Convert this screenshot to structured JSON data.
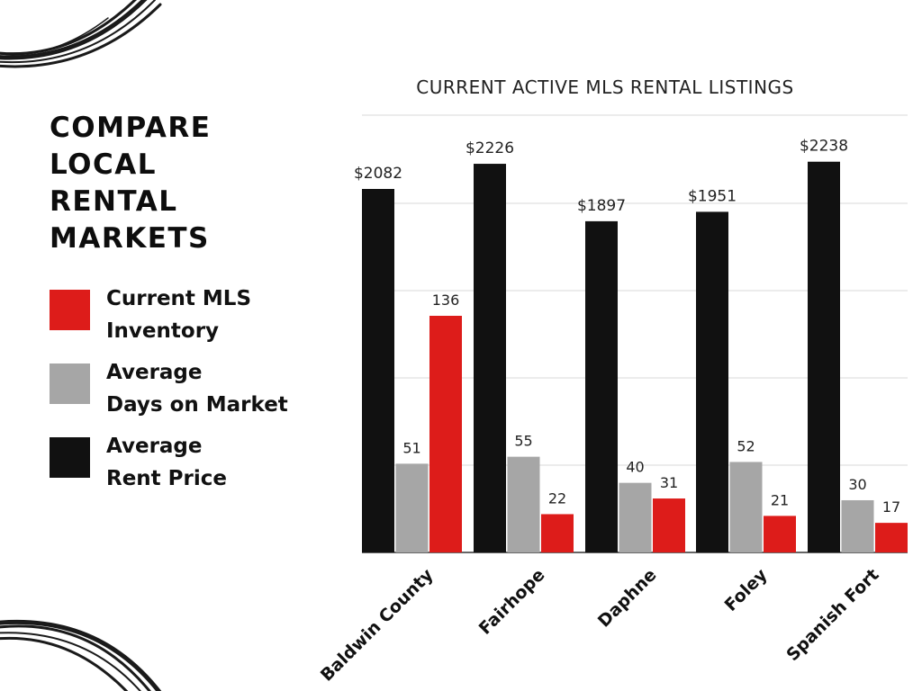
{
  "headline": [
    "COMPARE",
    "LOCAL",
    "RENTAL",
    "MARKETS"
  ],
  "legend": [
    {
      "lines": [
        "Current MLS",
        "Inventory"
      ],
      "color": "#dd1c1a"
    },
    {
      "lines": [
        "Average",
        "Days on Market"
      ],
      "color": "#a6a6a6"
    },
    {
      "lines": [
        "Average",
        "Rent Price"
      ],
      "color": "#111111"
    }
  ],
  "chart_data": {
    "type": "bar",
    "title": "CURRENT ACTIVE MLS RENTAL LISTINGS",
    "categories": [
      "Baldwin County",
      "Fairhope",
      "Daphne",
      "Foley",
      "Spanish Fort"
    ],
    "grid": true,
    "series": [
      {
        "name": "Average Rent Price",
        "color": "#111111",
        "values": [
          2082,
          2226,
          1897,
          1951,
          2238
        ],
        "labels": [
          "$2082",
          "$2226",
          "$1897",
          "$1951",
          "$2238"
        ]
      },
      {
        "name": "Average Days on Market",
        "color": "#a6a6a6",
        "values": [
          51,
          55,
          40,
          52,
          30
        ],
        "labels": [
          "51",
          "55",
          "40",
          "52",
          "30"
        ]
      },
      {
        "name": "Current MLS Inventory",
        "color": "#dd1c1a",
        "values": [
          136,
          22,
          31,
          21,
          17
        ],
        "labels": [
          "136",
          "22",
          "31",
          "21",
          "17"
        ]
      }
    ]
  }
}
